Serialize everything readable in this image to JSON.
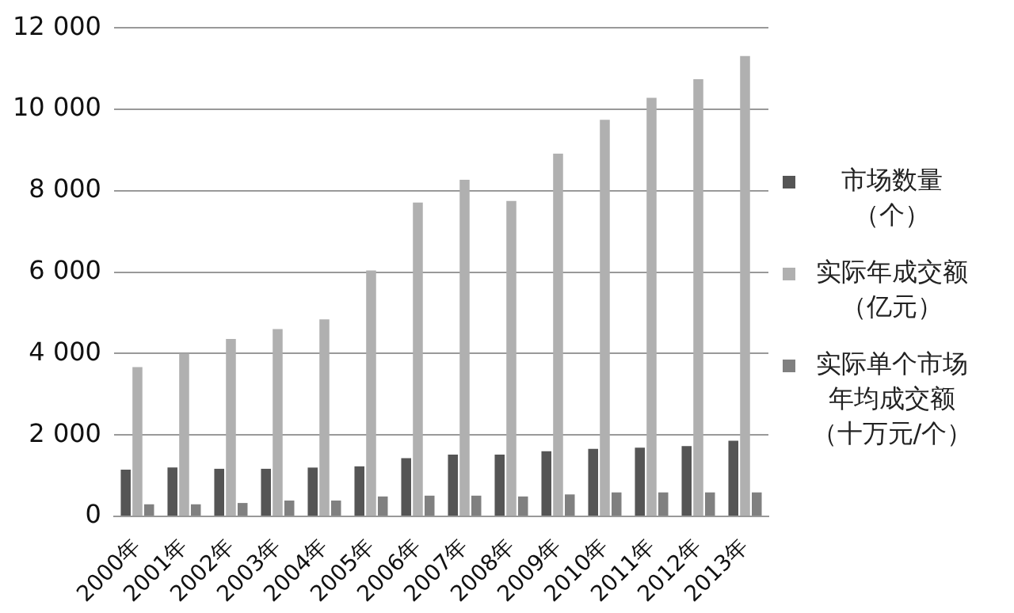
{
  "chart_data": {
    "type": "bar",
    "categories": [
      "2000年",
      "2001年",
      "2002年",
      "2003年",
      "2004年",
      "2005年",
      "2006年",
      "2007年",
      "2008年",
      "2009年",
      "2010年",
      "2011年",
      "2012年",
      "2013年"
    ],
    "series": [
      {
        "name": "市场数量（个）",
        "color": "#555555",
        "values": [
          1150,
          1200,
          1170,
          1170,
          1200,
          1230,
          1430,
          1520,
          1520,
          1600,
          1660,
          1690,
          1730,
          1860
        ]
      },
      {
        "name": "实际年成交额（亿元）",
        "color": "#b0b0b0",
        "values": [
          3670,
          4000,
          4360,
          4600,
          4840,
          6040,
          7710,
          8270,
          7750,
          8910,
          9740,
          10280,
          10740,
          11310
        ]
      },
      {
        "name": "实际单个市场年均成交额（十万元/个）",
        "color": "#808080",
        "values": [
          300,
          300,
          330,
          390,
          390,
          490,
          510,
          510,
          490,
          540,
          590,
          590,
          590,
          590
        ]
      }
    ],
    "ylim": [
      0,
      12000
    ],
    "yticks": [
      {
        "value": 0,
        "label": "0"
      },
      {
        "value": 2000,
        "label": "2 000"
      },
      {
        "value": 4000,
        "label": "4 000"
      },
      {
        "value": 6000,
        "label": "6 000"
      },
      {
        "value": 8000,
        "label": "8 000"
      },
      {
        "value": 10000,
        "label": "10 000"
      },
      {
        "value": 12000,
        "label": "12 000"
      }
    ],
    "grid": "y",
    "legend": "right"
  }
}
